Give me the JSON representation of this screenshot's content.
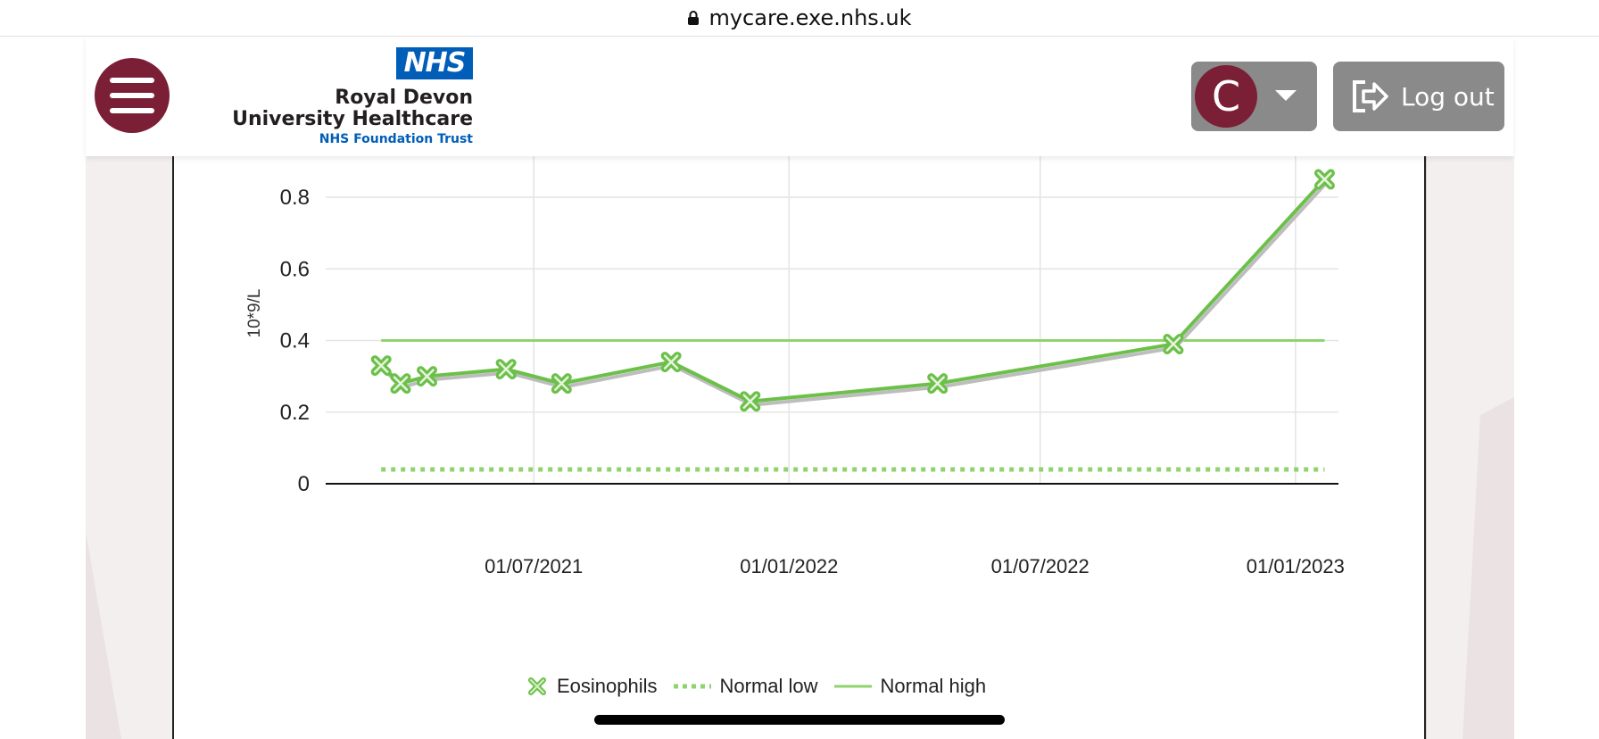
{
  "browser": {
    "url": "mycare.exe.nhs.uk"
  },
  "header": {
    "logo": {
      "badge": "NHS",
      "line1": "Royal Devon",
      "line2": "University Healthcare",
      "line3": "NHS Foundation Trust"
    },
    "user_initial": "C",
    "logout_label": "Log out"
  },
  "colors": {
    "brand": "#7a1f35",
    "nhs_blue": "#005eb8",
    "series": "#6cc04a",
    "button_grey": "#8a8a8a"
  },
  "icons": {
    "menu": "hamburger-icon",
    "lock": "lock-icon",
    "caret": "chevron-down-icon",
    "logout": "logout-icon"
  },
  "chart_data": {
    "type": "line",
    "ylabel": "10*9/L",
    "ylim": [
      0,
      0.85
    ],
    "yticks": [
      0,
      0.2,
      0.4,
      0.6,
      0.8
    ],
    "ytick_labels": [
      "0",
      "0.2",
      "0.4",
      "0.6",
      "0.8"
    ],
    "xticks": [
      "2021-07-01",
      "2022-01-01",
      "2022-07-01",
      "2023-01-01"
    ],
    "xtick_labels": [
      "01/07/2021",
      "01/01/2022",
      "01/07/2022",
      "01/01/2023"
    ],
    "xlim": [
      "2021-02-01",
      "2023-02-01"
    ],
    "grid": true,
    "legend_position": "bottom",
    "series": [
      {
        "name": "Eosinophils",
        "style": "line-markers",
        "points": [
          {
            "x": "2021-03-13",
            "y": 0.33
          },
          {
            "x": "2021-03-27",
            "y": 0.28
          },
          {
            "x": "2021-04-15",
            "y": 0.3
          },
          {
            "x": "2021-06-11",
            "y": 0.32
          },
          {
            "x": "2021-07-21",
            "y": 0.28
          },
          {
            "x": "2021-10-08",
            "y": 0.34
          },
          {
            "x": "2021-12-04",
            "y": 0.23
          },
          {
            "x": "2022-04-18",
            "y": 0.28
          },
          {
            "x": "2022-10-05",
            "y": 0.39
          },
          {
            "x": "2023-01-22",
            "y": 0.85
          }
        ]
      },
      {
        "name": "Normal low",
        "style": "dotted",
        "value": 0.04
      },
      {
        "name": "Normal high",
        "style": "solid-thin",
        "value": 0.4
      }
    ]
  }
}
